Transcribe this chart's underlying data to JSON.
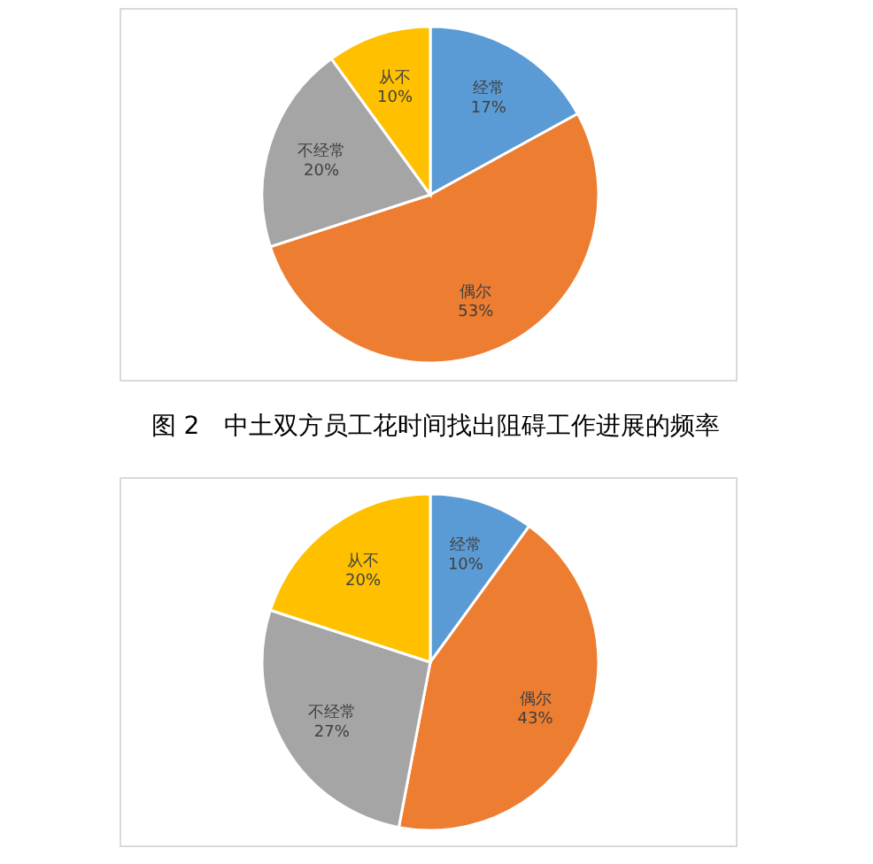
{
  "chart_data": [
    {
      "type": "pie",
      "categories": [
        "经常",
        "偶尔",
        "不经常",
        "从不"
      ],
      "values": [
        17,
        53,
        20,
        10
      ],
      "colors": [
        "#5b9bd5",
        "#ed7d31",
        "#a5a5a5",
        "#ffc000"
      ],
      "value_labels": [
        "17%",
        "53%",
        "20%",
        "10%"
      ],
      "annotations": [
        "图 2　中土双方员工花时间找出阻碍工作进展的频率"
      ]
    },
    {
      "type": "pie",
      "categories": [
        "经常",
        "偶尔",
        "不经常",
        "从不"
      ],
      "values": [
        10,
        43,
        27,
        20
      ],
      "colors": [
        "#5b9bd5",
        "#ed7d31",
        "#a5a5a5",
        "#ffc000"
      ],
      "value_labels": [
        "10%",
        "43%",
        "27%",
        "20%"
      ]
    }
  ]
}
